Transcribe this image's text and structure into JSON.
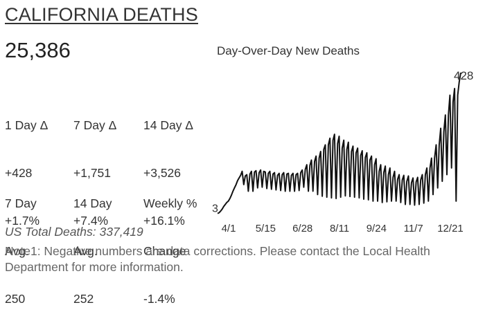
{
  "header": {
    "title": "CALIFORNIA DEATHS",
    "total": "25,386"
  },
  "stats_row1": [
    {
      "label": "1 Day Δ",
      "count": "+428",
      "pct": "+1.7%"
    },
    {
      "label": "7 Day Δ",
      "count": "+1,751",
      "pct": "+7.4%"
    },
    {
      "label": "14 Day Δ",
      "count": "+3,526",
      "pct": "+16.1%"
    }
  ],
  "stats_row2": [
    {
      "line1": "7 Day",
      "line2": "Avg.",
      "value": "250"
    },
    {
      "line1": "14 Day",
      "line2": "Avg.",
      "value": "252"
    },
    {
      "line1": "Weekly %",
      "line2": "Change",
      "value": "-1.4%"
    }
  ],
  "us_total": "US Total Deaths: 337,419",
  "note": "Note1: Negative numbers are data corrections. Please contact the Local Health Department for more information.",
  "chart_data": {
    "type": "line",
    "title": "Day-Over-Day New Deaths",
    "x_ticks": [
      "4/1",
      "5/15",
      "6/28",
      "8/11",
      "9/24",
      "11/7",
      "12/21"
    ],
    "start_label": "3",
    "end_label": "428",
    "series": [
      {
        "values": [
          3,
          5,
          10,
          16,
          24,
          30,
          36,
          40,
          48,
          58,
          70,
          80,
          90,
          102,
          110,
          118,
          130,
          90,
          116,
          120,
          70,
          122,
          130,
          70,
          128,
          132,
          80,
          126,
          134,
          82,
          130,
          128,
          78,
          124,
          130,
          76,
          122,
          126,
          74,
          118,
          124,
          72,
          120,
          126,
          70,
          122,
          124,
          70,
          118,
          124,
          70,
          120,
          124,
          72,
          126,
          134,
          82,
          136,
          150,
          70,
          148,
          164,
          70,
          160,
          176,
          60,
          170,
          190,
          55,
          196,
          210,
          52,
          210,
          230,
          50,
          224,
          242,
          48,
          214,
          236,
          52,
          200,
          224,
          56,
          196,
          218,
          54,
          190,
          206,
          52,
          186,
          200,
          50,
          178,
          192,
          46,
          172,
          186,
          44,
          164,
          176,
          40,
          150,
          168,
          40,
          130,
          150,
          36,
          126,
          146,
          38,
          120,
          140,
          40,
          112,
          130,
          40,
          106,
          120,
          36,
          104,
          118,
          30,
          100,
          116,
          30,
          96,
          110,
          28,
          98,
          112,
          30,
          104,
          120,
          34,
          120,
          140,
          40,
          140,
          170,
          60,
          170,
          210,
          80,
          210,
          260,
          100,
          250,
          300,
          120,
          300,
          360,
          140,
          340,
          380,
          40,
          360,
          400,
          428
        ]
      }
    ]
  }
}
